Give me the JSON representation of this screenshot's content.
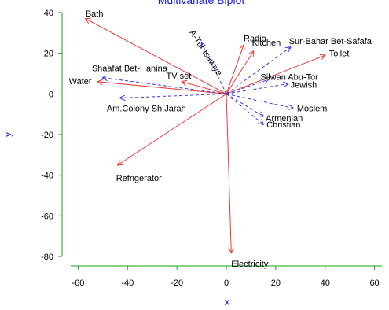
{
  "chart_data": {
    "type": "biplot",
    "title": "Multivariate Biplot",
    "xlabel": "x",
    "ylabel": "y",
    "xlim": [
      -63,
      63
    ],
    "ylim": [
      -80,
      40
    ],
    "xticks": [
      -60,
      -40,
      -20,
      0,
      20,
      40,
      60
    ],
    "yticks": [
      40,
      20,
      0,
      -20,
      -40,
      -60,
      -80
    ],
    "grid": false,
    "colors": {
      "variables": "#e83a3a",
      "observations": "#3a3ae8",
      "axes": "#1aa31a",
      "title": "#1a1adb"
    },
    "variables": [
      {
        "name": "Bath",
        "x": -57,
        "y": 37
      },
      {
        "name": "Radio",
        "x": 7,
        "y": 24
      },
      {
        "name": "Kitchen",
        "x": 11,
        "y": 21
      },
      {
        "name": "Toilet",
        "x": 40,
        "y": 19
      },
      {
        "name": "TV set",
        "x": -18,
        "y": 6
      },
      {
        "name": "Water",
        "x": -52,
        "y": 6
      },
      {
        "name": "Refrigerator",
        "x": -44,
        "y": -35
      },
      {
        "name": "Electricity",
        "x": 2,
        "y": -78
      }
    ],
    "observations": [
      {
        "name": "A-Tur Isawiye",
        "x": -10,
        "y": 25
      },
      {
        "name": "Sur-Bahar Bet-Safafa",
        "x": 26,
        "y": 23
      },
      {
        "name": "Shaafat Bet-Hanina",
        "x": -50,
        "y": 8
      },
      {
        "name": "Silwan Abu-Tor",
        "x": 17,
        "y": 7
      },
      {
        "name": "Jewish",
        "x": 25,
        "y": 5
      },
      {
        "name": "Am.Colony Sh.Jarah",
        "x": -43,
        "y": -2
      },
      {
        "name": "Moslem",
        "x": 27,
        "y": -7
      },
      {
        "name": "Armenian",
        "x": 15,
        "y": -11
      },
      {
        "name": "Christian",
        "x": 15,
        "y": -15
      }
    ]
  }
}
